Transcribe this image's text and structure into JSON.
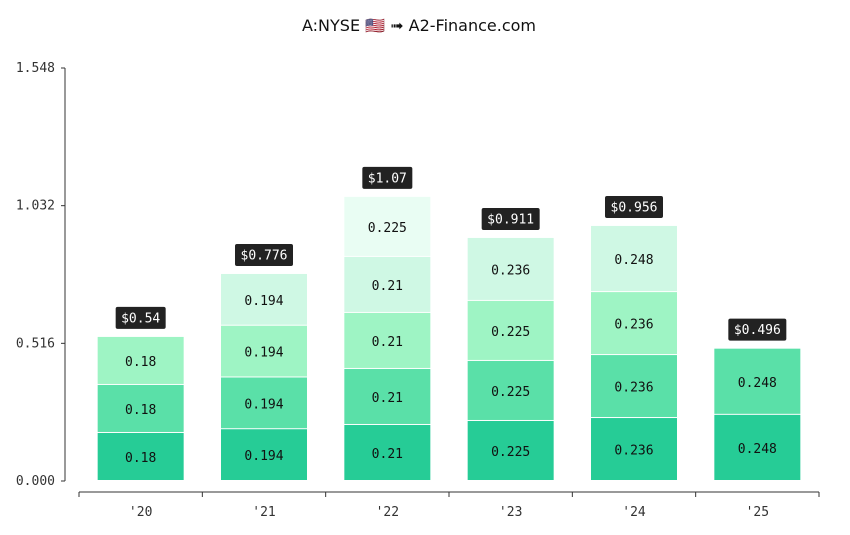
{
  "title": "A:NYSE 🇺🇸 ➟ A2-Finance.com",
  "chart_data": {
    "type": "bar",
    "stacked": true,
    "categories": [
      "'20",
      "'21",
      "'22",
      "'23",
      "'24",
      "'25"
    ],
    "stacks": [
      [
        "0.18",
        "0.18",
        "0.18"
      ],
      [
        "0.194",
        "0.194",
        "0.194",
        "0.194"
      ],
      [
        "0.21",
        "0.21",
        "0.21",
        "0.21",
        "0.225"
      ],
      [
        "0.225",
        "0.225",
        "0.225",
        "0.236"
      ],
      [
        "0.236",
        "0.236",
        "0.236",
        "0.248"
      ],
      [
        "0.248",
        "0.248"
      ]
    ],
    "totals": [
      "$0.54",
      "$0.776",
      "$1.07",
      "$0.911",
      "$0.956",
      "$0.496"
    ],
    "yticks": [
      "0.000",
      "0.516",
      "1.032",
      "1.548"
    ],
    "ylim": [
      0,
      1.548
    ],
    "segment_colors": [
      "#26cc96",
      "#5ae0a8",
      "#9ef4c4",
      "#cff8e4",
      "#e9fdf3"
    ],
    "total_label_bg": "#222222",
    "grid": false,
    "legend": "none"
  }
}
